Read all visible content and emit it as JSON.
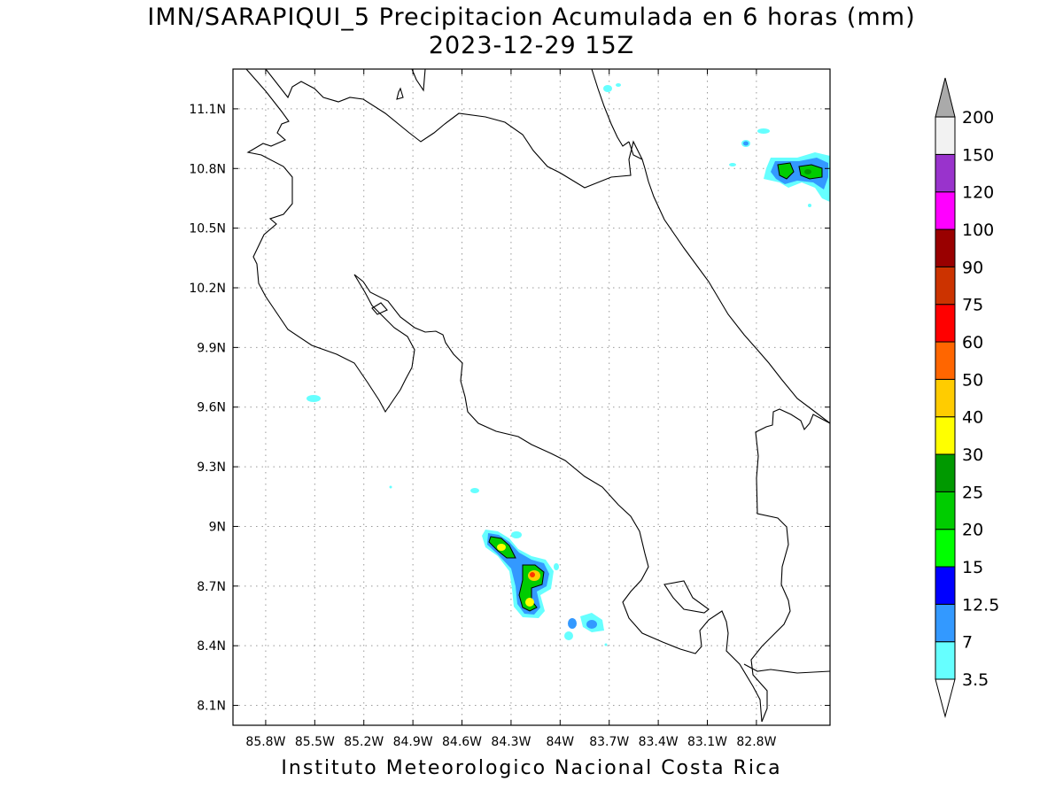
{
  "title": "IMN/SARAPIQUI_5 Precipitacion Acumulada en 6 horas (mm)",
  "subtitle": "2023-12-29 15Z",
  "credit": "Instituto Meteorologico Nacional Costa Rica",
  "map": {
    "lon_range": [
      -86.0,
      -82.35
    ],
    "lat_range": [
      8.0,
      11.3
    ],
    "x_ticks": [
      "85.8W",
      "85.5W",
      "85.2W",
      "84.9W",
      "84.6W",
      "84.3W",
      "84W",
      "83.7W",
      "83.4W",
      "83.1W",
      "82.8W"
    ],
    "y_ticks": [
      "11.1N",
      "10.8N",
      "10.5N",
      "10.2N",
      "9.9N",
      "9.6N",
      "9.3N",
      "9N",
      "8.7N",
      "8.4N",
      "8.1N"
    ],
    "grid": true
  },
  "colorbar": {
    "labels": [
      "3.5",
      "7",
      "12.5",
      "15",
      "20",
      "25",
      "30",
      "40",
      "50",
      "60",
      "75",
      "90",
      "100",
      "120",
      "150",
      "200"
    ],
    "colors": [
      "#66ffff",
      "#3399ff",
      "#0000ff",
      "#00ff00",
      "#00cc00",
      "#009900",
      "#ffff00",
      "#ffcc00",
      "#ff6600",
      "#ff0000",
      "#cc3300",
      "#990000",
      "#ff00ff",
      "#9933cc",
      "#f2f2f2",
      "#aaaaaa"
    ]
  }
}
